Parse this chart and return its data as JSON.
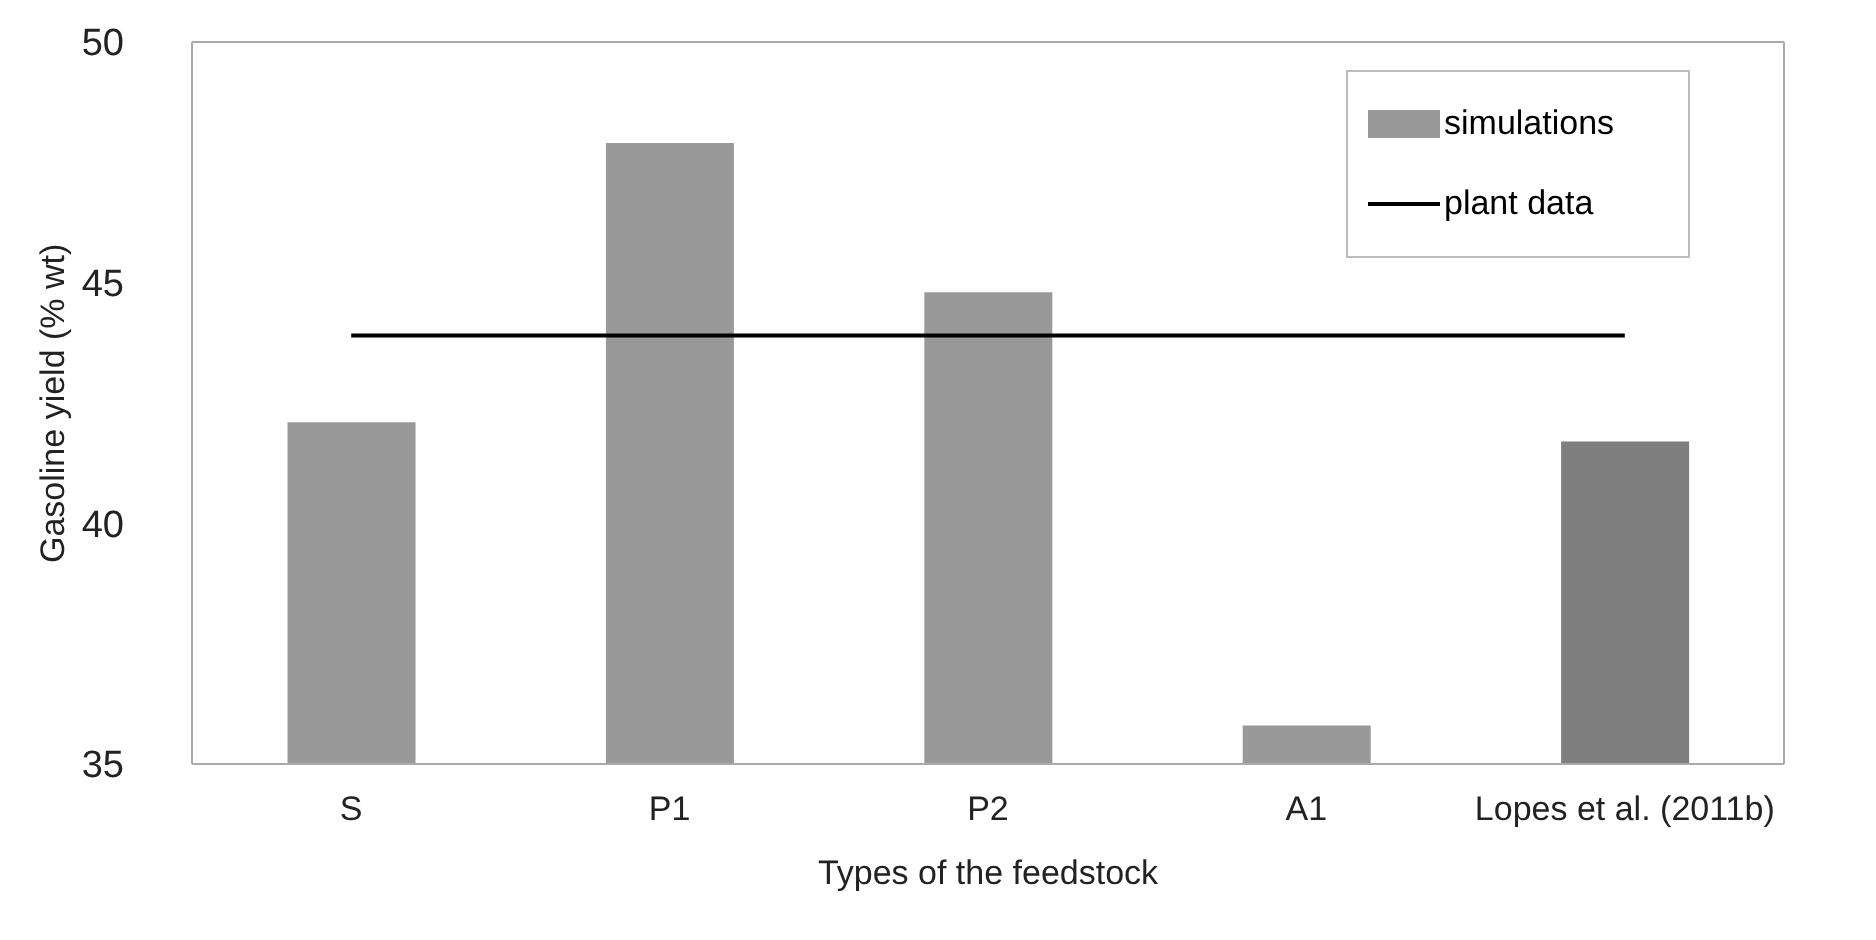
{
  "chart_data": {
    "type": "bar",
    "xlabel": "Types of the feedstock",
    "ylabel": "Gasoline yield (% wt)",
    "categories": [
      "S",
      "P1",
      "P2",
      "A1",
      "Lopes et al. (2011b)"
    ],
    "series": [
      {
        "name": "simulations",
        "color": "#999999",
        "colors": [
          "#999999",
          "#999999",
          "#999999",
          "#999999",
          "#7f7f7f"
        ],
        "values": [
          42.1,
          47.9,
          44.8,
          35.8,
          41.7
        ]
      },
      {
        "type": "line",
        "name": "plant data",
        "color": "#000000",
        "values": [
          43.9,
          43.9,
          43.9,
          43.9,
          43.9
        ]
      }
    ],
    "ylim": [
      35,
      50
    ],
    "yticks": [
      35,
      40,
      45,
      50
    ],
    "grid": false,
    "legend": "top right",
    "marker": "none",
    "line_style": "solid"
  }
}
